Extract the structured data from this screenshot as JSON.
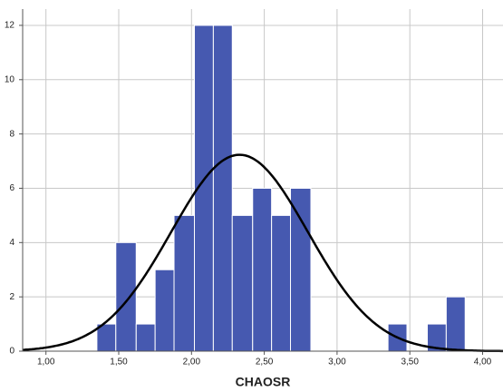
{
  "chart_data": {
    "type": "histogram",
    "x_label": "CHAOSR",
    "bins": [
      1.35,
      1.48,
      1.62,
      1.75,
      1.88,
      2.02,
      2.15,
      2.28,
      2.42,
      2.55,
      2.68,
      2.82,
      2.95,
      3.08,
      3.22,
      3.35,
      3.48,
      3.62,
      3.75,
      3.88
    ],
    "values": [
      1,
      4,
      1,
      3,
      5,
      12,
      12,
      5,
      6,
      5,
      6,
      0,
      0,
      0,
      0,
      1,
      0,
      1,
      2
    ],
    "color": "#4659b0",
    "normal_curve": {
      "mean": 2.33,
      "sd": 0.47,
      "color": "#000000"
    },
    "xlim": [
      0.84,
      4.14
    ],
    "xticks": [
      {
        "value": 1,
        "label": "1,00"
      },
      {
        "value": 1.5,
        "label": "1,50"
      },
      {
        "value": 2,
        "label": "2,00"
      },
      {
        "value": 2.5,
        "label": "2,50"
      },
      {
        "value": 3,
        "label": "3,00"
      },
      {
        "value": 3.5,
        "label": "3,50"
      },
      {
        "value": 4,
        "label": "4,00"
      }
    ],
    "ylim": [
      0,
      12.6
    ],
    "yticks": [
      0,
      2,
      4,
      6,
      8,
      10,
      12
    ],
    "grid": true
  }
}
